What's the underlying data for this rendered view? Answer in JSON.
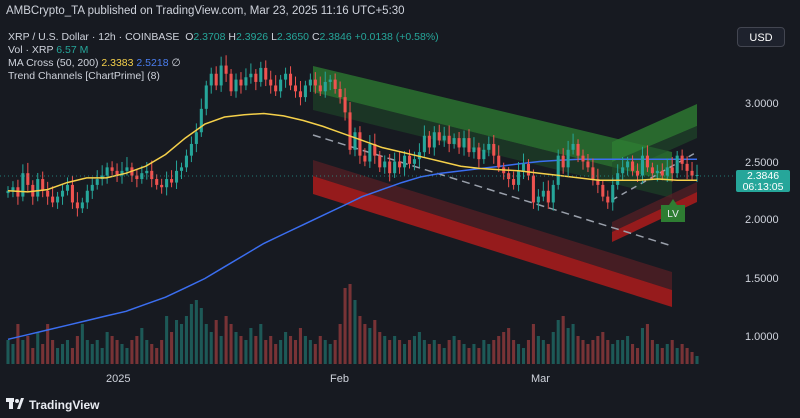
{
  "header": {
    "published_by": "AMBCrypto_TA published on TradingView.com, Mar 23, 2025 11:16 UTC+5:30"
  },
  "legend": {
    "symbol": "XRP / U.S. Dollar · 12h · COINBASE",
    "open_label": "O",
    "open": "2.3708",
    "high_label": "H",
    "high": "2.3926",
    "low_label": "L",
    "low": "2.3650",
    "close_label": "C",
    "close": "2.3846",
    "change": "+0.0138 (+0.58%)",
    "volume_label": "Vol · XRP",
    "volume": "6.57 M",
    "ma_label": "MA Cross (50, 200)",
    "ma50": "2.3383",
    "ma200": "2.5218",
    "ma_extra": "∅",
    "trend_label": "Trend Channels [ChartPrime] (8)"
  },
  "currency_button": "USD",
  "price_axis": [
    "3.0000",
    "2.5000",
    "2.0000",
    "1.5000",
    "1.0000"
  ],
  "current_price": {
    "price": "2.3846",
    "countdown": "06:13:05"
  },
  "time_axis": [
    "2025",
    "Feb",
    "Mar"
  ],
  "lv_label": "LV",
  "footer": {
    "brand": "TradingView"
  },
  "colors": {
    "background": "#171a21",
    "up": "#26a69a",
    "down": "#ef5350",
    "ma50": "#f5d04a",
    "ma200": "#3b6ef0",
    "channel_green": "#2e7d32",
    "channel_red": "#b71c1c"
  },
  "chart_data": {
    "type": "candlestick",
    "symbol": "XRP / U.S. Dollar",
    "interval": "12h",
    "exchange": "COINBASE",
    "x_ticks": [
      "2025",
      "Feb",
      "Mar"
    ],
    "y_ticks": [
      1.0,
      1.5,
      2.0,
      2.5,
      3.0
    ],
    "ylim": [
      0.78,
      3.5
    ],
    "last_price": 2.3846,
    "close": [
      2.25,
      2.28,
      2.2,
      2.4,
      2.3,
      2.2,
      2.35,
      2.25,
      2.2,
      2.15,
      2.2,
      2.25,
      2.3,
      2.15,
      2.1,
      2.15,
      2.25,
      2.3,
      2.35,
      2.38,
      2.45,
      2.42,
      2.38,
      2.42,
      2.45,
      2.38,
      2.35,
      2.4,
      2.42,
      2.35,
      2.3,
      2.28,
      2.35,
      2.32,
      2.42,
      2.45,
      2.55,
      2.65,
      2.75,
      2.95,
      3.15,
      3.25,
      3.15,
      3.32,
      3.25,
      3.1,
      3.2,
      3.15,
      3.22,
      3.25,
      3.18,
      3.3,
      3.2,
      3.15,
      3.1,
      3.2,
      3.25,
      3.15,
      3.1,
      3.05,
      3.15,
      3.2,
      3.15,
      3.1,
      3.18,
      3.2,
      3.12,
      3.05,
      2.92,
      2.6,
      2.75,
      2.55,
      2.5,
      2.65,
      2.55,
      2.45,
      2.5,
      2.4,
      2.5,
      2.45,
      2.55,
      2.48,
      2.52,
      2.58,
      2.72,
      2.62,
      2.75,
      2.68,
      2.72,
      2.65,
      2.7,
      2.62,
      2.7,
      2.58,
      2.62,
      2.52,
      2.6,
      2.65,
      2.55,
      2.45,
      2.4,
      2.35,
      2.3,
      2.42,
      2.48,
      2.38,
      2.15,
      2.2,
      2.25,
      2.15,
      2.3,
      2.55,
      2.45,
      2.6,
      2.65,
      2.55,
      2.5,
      2.45,
      2.35,
      2.3,
      2.2,
      2.15,
      2.3,
      2.4,
      2.45,
      2.5,
      2.42,
      2.38,
      2.55,
      2.45,
      2.4,
      2.42,
      2.38,
      2.45,
      2.4,
      2.55,
      2.48,
      2.42,
      2.38,
      2.3846
    ],
    "ma50": [
      2.25,
      2.24,
      2.26,
      2.32,
      2.36,
      2.36,
      2.4,
      2.46,
      2.56,
      2.7,
      2.82,
      2.88,
      2.9,
      2.91,
      2.89,
      2.85,
      2.8,
      2.74,
      2.68,
      2.62,
      2.58,
      2.54,
      2.5,
      2.46,
      2.44,
      2.43,
      2.42,
      2.4,
      2.38,
      2.36,
      2.34,
      2.34,
      2.34,
      2.35,
      2.34,
      2.34
    ],
    "ma200": [
      0.98,
      1.02,
      1.06,
      1.1,
      1.14,
      1.18,
      1.22,
      1.28,
      1.34,
      1.42,
      1.5,
      1.6,
      1.7,
      1.8,
      1.88,
      1.96,
      2.04,
      2.12,
      2.2,
      2.26,
      2.32,
      2.37,
      2.4,
      2.42,
      2.44,
      2.46,
      2.48,
      2.5,
      2.51,
      2.52,
      2.52,
      2.52,
      2.52,
      2.52,
      2.52,
      2.52
    ],
    "volume": [
      0.3,
      0.25,
      0.5,
      0.3,
      0.35,
      0.2,
      0.4,
      0.25,
      0.5,
      0.3,
      0.2,
      0.25,
      0.3,
      0.2,
      0.35,
      0.5,
      0.3,
      0.25,
      0.3,
      0.2,
      0.4,
      0.35,
      0.3,
      0.25,
      0.2,
      0.3,
      0.35,
      0.45,
      0.3,
      0.25,
      0.2,
      0.3,
      0.6,
      0.4,
      0.55,
      0.5,
      0.6,
      0.75,
      0.8,
      0.7,
      0.5,
      0.4,
      0.55,
      0.35,
      0.6,
      0.5,
      0.4,
      0.35,
      0.3,
      0.45,
      0.35,
      0.5,
      0.3,
      0.35,
      0.25,
      0.3,
      0.4,
      0.35,
      0.3,
      0.45,
      0.35,
      0.3,
      0.25,
      0.35,
      0.3,
      0.25,
      0.3,
      0.5,
      0.95,
      1.0,
      0.8,
      0.6,
      0.5,
      0.45,
      0.55,
      0.4,
      0.35,
      0.3,
      0.35,
      0.3,
      0.25,
      0.3,
      0.35,
      0.4,
      0.3,
      0.25,
      0.3,
      0.25,
      0.2,
      0.3,
      0.35,
      0.3,
      0.25,
      0.2,
      0.25,
      0.2,
      0.3,
      0.25,
      0.3,
      0.35,
      0.4,
      0.45,
      0.3,
      0.25,
      0.2,
      0.3,
      0.5,
      0.35,
      0.3,
      0.25,
      0.4,
      0.55,
      0.6,
      0.45,
      0.5,
      0.35,
      0.3,
      0.25,
      0.3,
      0.35,
      0.4,
      0.3,
      0.25,
      0.3,
      0.3,
      0.35,
      0.25,
      0.2,
      0.45,
      0.5,
      0.3,
      0.25,
      0.2,
      0.25,
      0.3,
      0.2,
      0.25,
      0.2,
      0.15,
      0.1
    ]
  }
}
